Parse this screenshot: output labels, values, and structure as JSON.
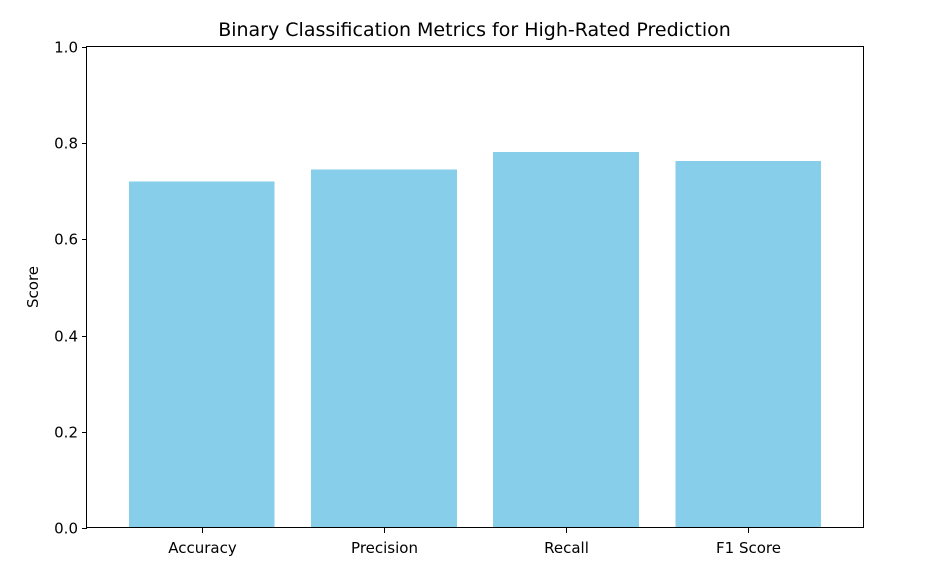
{
  "chart_data": {
    "type": "bar",
    "title": "Binary Classification Metrics for High-Rated Prediction",
    "xlabel": "",
    "ylabel": "Score",
    "categories": [
      "Accuracy",
      "Precision",
      "Recall",
      "F1 Score"
    ],
    "values": [
      0.72,
      0.745,
      0.782,
      0.763
    ],
    "ylim": [
      0,
      1.0
    ],
    "yticks": [
      "0.0",
      "0.2",
      "0.4",
      "0.6",
      "0.8",
      "1.0"
    ],
    "bar_color": "#87CEEB",
    "grid": false,
    "legend": "none"
  }
}
